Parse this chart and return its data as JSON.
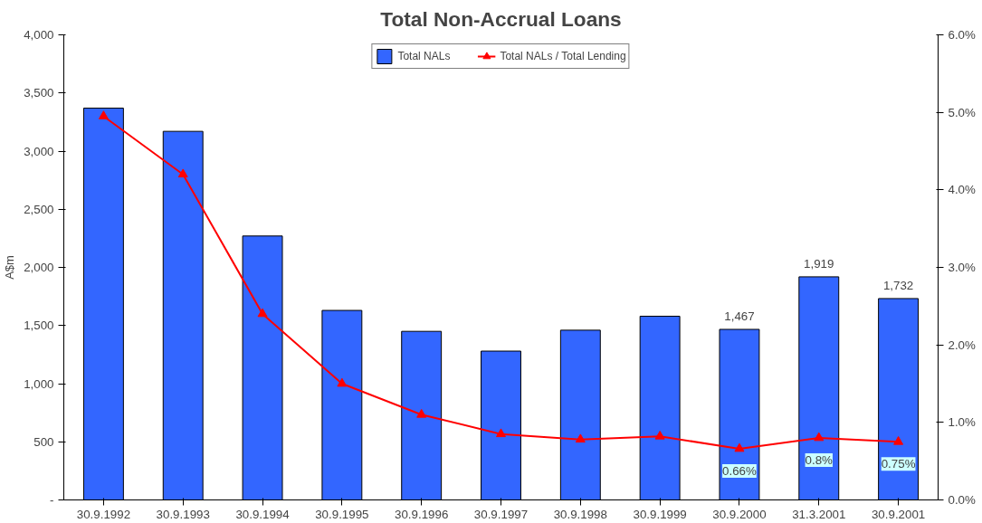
{
  "chart_data": {
    "type": "bar",
    "title": "Total Non-Accrual Loans",
    "ylabel": "A$m",
    "categories": [
      "30.9.1992",
      "30.9.1993",
      "30.9.1994",
      "30.9.1995",
      "30.9.1996",
      "30.9.1997",
      "30.9.1998",
      "30.9.1999",
      "30.9.2000",
      "31.3.2001",
      "30.9.2001"
    ],
    "series": [
      {
        "name": "Total NALs",
        "color": "#3366ff",
        "values": [
          3370,
          3170,
          2270,
          1630,
          1450,
          1280,
          1460,
          1580,
          1467,
          1919,
          1732
        ],
        "value_labels": [
          null,
          null,
          null,
          null,
          null,
          null,
          null,
          null,
          "1,467",
          "1,919",
          "1,732"
        ]
      },
      {
        "name": "Total NALs / Total Lending",
        "type": "line",
        "axis": "y2",
        "color": "#ff0000",
        "marker": "triangle",
        "values": [
          4.95,
          4.2,
          2.4,
          1.5,
          1.1,
          0.85,
          0.78,
          0.82,
          0.66,
          0.8,
          0.75
        ],
        "value_labels": [
          null,
          null,
          null,
          null,
          null,
          null,
          null,
          null,
          "0.66%",
          "0.8%",
          "0.75%"
        ]
      }
    ],
    "ylim": [
      0,
      4000
    ],
    "yticks": [
      {
        "value": 0,
        "label": "-"
      },
      {
        "value": 500,
        "label": "500"
      },
      {
        "value": 1000,
        "label": "1,000"
      },
      {
        "value": 1500,
        "label": "1,500"
      },
      {
        "value": 2000,
        "label": "2,000"
      },
      {
        "value": 2500,
        "label": "2,500"
      },
      {
        "value": 3000,
        "label": "3,000"
      },
      {
        "value": 3500,
        "label": "3,500"
      },
      {
        "value": 4000,
        "label": "4,000"
      }
    ],
    "y2lim": [
      0,
      6
    ],
    "y2ticks": [
      {
        "value": 0,
        "label": "0.0%"
      },
      {
        "value": 1,
        "label": "1.0%"
      },
      {
        "value": 2,
        "label": "2.0%"
      },
      {
        "value": 3,
        "label": "3.0%"
      },
      {
        "value": 4,
        "label": "4.0%"
      },
      {
        "value": 5,
        "label": "5.0%"
      },
      {
        "value": 6,
        "label": "6.0%"
      }
    ],
    "grid": false,
    "legend": "top"
  }
}
